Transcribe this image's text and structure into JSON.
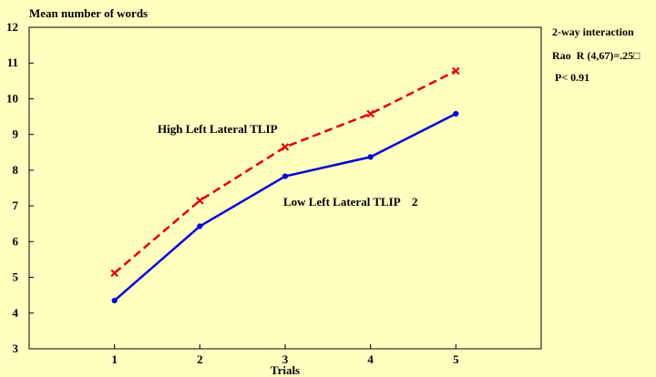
{
  "chart_data": {
    "type": "line",
    "ylabel": "Mean number of words",
    "xlabel": "Trials",
    "x": [
      1,
      2,
      3,
      4,
      5
    ],
    "xlim": [
      0,
      6
    ],
    "ylim": [
      3,
      12
    ],
    "yticks": [
      3,
      4,
      5,
      6,
      7,
      8,
      9,
      10,
      11,
      12
    ],
    "xticks": [
      1,
      2,
      3,
      4,
      5
    ],
    "grid": false,
    "series": [
      {
        "name": "High Left Lateral TLIP",
        "values": [
          5.12,
          7.15,
          8.65,
          9.58,
          10.78
        ],
        "color": "#e00000",
        "line_style": "dashed",
        "marker": "x"
      },
      {
        "name": "Low Left Lateral TLIP    2",
        "values": [
          4.35,
          6.43,
          7.83,
          8.37,
          9.58
        ],
        "color": "#0000d0",
        "line_style": "solid",
        "marker": "circle"
      }
    ],
    "annotations": {
      "line1": "2-way interaction",
      "line2": "Rao  R (4,67)=.25□",
      "line3": "P< 0.91"
    }
  }
}
